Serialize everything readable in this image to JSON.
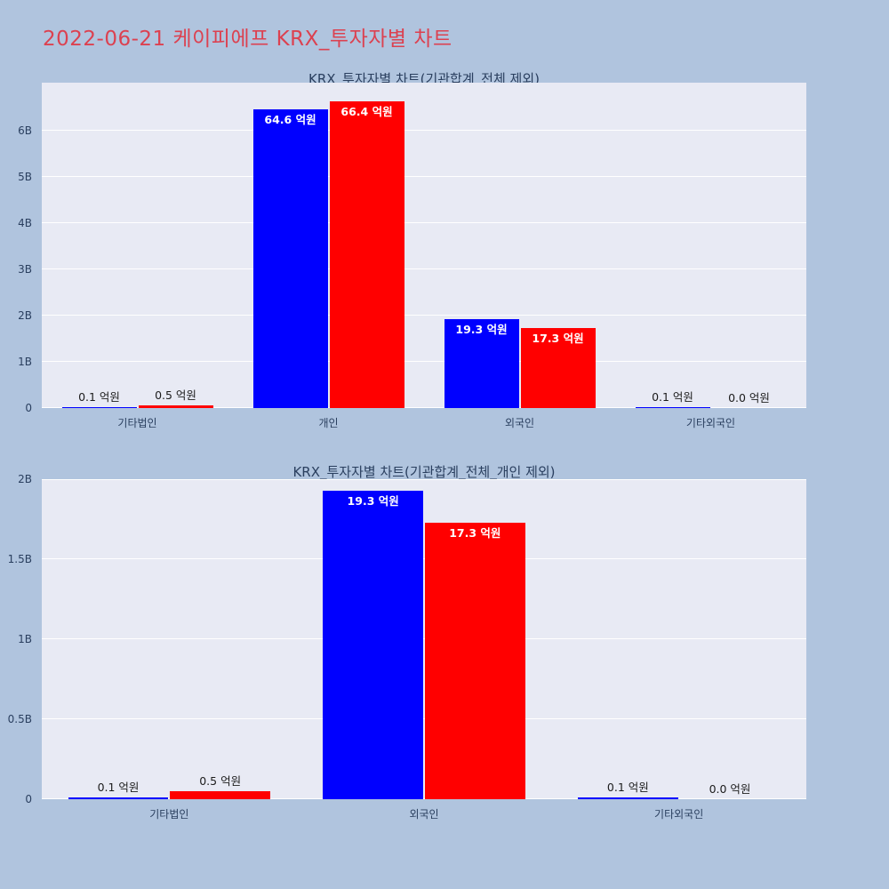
{
  "page": {
    "title": "2022-06-21 케이피에프 KRX_투자자별 차트",
    "colors": {
      "background": "#b0c4de",
      "plot_background": "#e8eaf4",
      "grid": "#ffffff",
      "title": "#dc4150",
      "axis_text": "#2a3f5f",
      "bar_blue": "#0000ff",
      "bar_red": "#ff0000",
      "label_inside": "#ffffff",
      "label_outside": "#1c1c1c"
    }
  },
  "chart_data": [
    {
      "type": "bar",
      "title": "KRX_투자자별 차트(기관합계_전체 제외)",
      "unit": "억원",
      "categories": [
        "기타법인",
        "개인",
        "외국인",
        "기타외국인"
      ],
      "series": [
        {
          "name": "series-blue",
          "color": "#0000ff",
          "values_eokwon": [
            0.1,
            64.6,
            19.3,
            0.1
          ],
          "labels": [
            "0.1 억원",
            "64.6 억원",
            "19.3 억원",
            "0.1 억원"
          ]
        },
        {
          "name": "series-red",
          "color": "#ff0000",
          "values_eokwon": [
            0.5,
            66.4,
            17.3,
            0.0
          ],
          "labels": [
            "0.5 억원",
            "66.4 억원",
            "17.3 억원",
            "0.0 억원"
          ]
        }
      ],
      "xlabel": "",
      "ylabel": "",
      "ytick_labels": [
        "0",
        "1B",
        "2B",
        "3B",
        "4B",
        "5B",
        "6B"
      ],
      "ytick_values_B": [
        0,
        1,
        2,
        3,
        4,
        5,
        6
      ],
      "ylim_B": [
        0,
        7.04
      ],
      "grid": true,
      "legend": false
    },
    {
      "type": "bar",
      "title": "KRX_투자자별 차트(기관합계_전체_개인 제외)",
      "unit": "억원",
      "categories": [
        "기타법인",
        "외국인",
        "기타외국인"
      ],
      "series": [
        {
          "name": "series-blue",
          "color": "#0000ff",
          "values_eokwon": [
            0.1,
            19.3,
            0.1
          ],
          "labels": [
            "0.1 억원",
            "19.3 억원",
            "0.1 억원"
          ]
        },
        {
          "name": "series-red",
          "color": "#ff0000",
          "values_eokwon": [
            0.5,
            17.3,
            0.0
          ],
          "labels": [
            "0.5 억원",
            "17.3 억원",
            "0.0 억원"
          ]
        }
      ],
      "xlabel": "",
      "ylabel": "",
      "ytick_labels": [
        "0",
        "0.5B",
        "1B",
        "1.5B",
        "2B"
      ],
      "ytick_values_B": [
        0,
        0.5,
        1,
        1.5,
        2
      ],
      "ylim_B": [
        0,
        2
      ],
      "grid": true,
      "legend": false
    }
  ]
}
